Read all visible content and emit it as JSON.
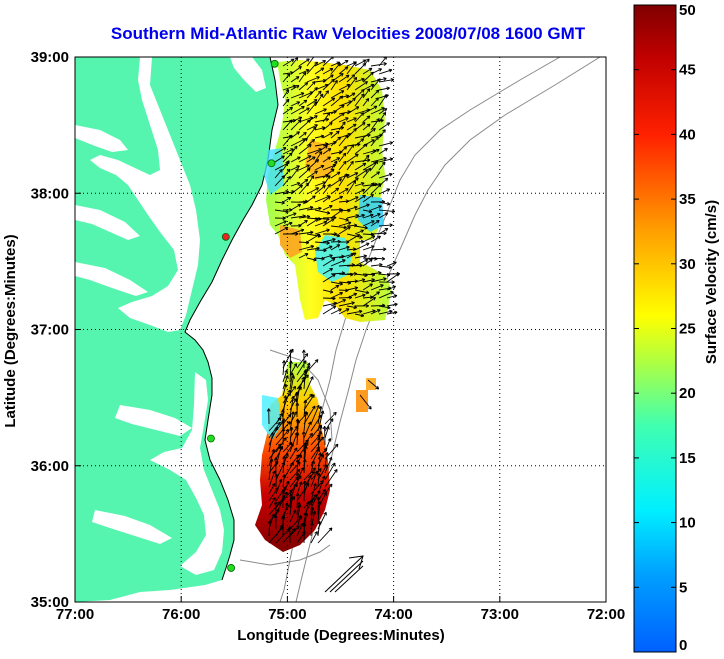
{
  "title": "Southern Mid-Atlantic Raw Velocities 2008/07/08 1600 GMT",
  "x_axis": {
    "label": "Longitude (Degrees:Minutes)",
    "ticks": [
      "77:00",
      "76:00",
      "75:00",
      "74:00",
      "73:00",
      "72:00"
    ]
  },
  "y_axis": {
    "label": "Latitude (Degrees:Minutes)",
    "ticks": [
      "39:00",
      "38:00",
      "37:00",
      "36:00",
      "35:00"
    ]
  },
  "colorbar": {
    "label": "Surface Velocity (cm/s)",
    "min": 0,
    "max": 50,
    "ticks": [
      "0",
      "5",
      "10",
      "15",
      "20",
      "25",
      "30",
      "35",
      "40",
      "45",
      "50"
    ]
  },
  "colors": {
    "land": "#55f5b0",
    "sea": "#ffffff",
    "title": "#0000ee",
    "bathymetry": "#8a8a8a"
  },
  "stations": [
    {
      "lon": -75.12,
      "lat": 38.95,
      "status": "active"
    },
    {
      "lon": -75.15,
      "lat": 38.22,
      "status": "active"
    },
    {
      "lon": -75.58,
      "lat": 37.68,
      "status": "offline"
    },
    {
      "lon": -75.72,
      "lat": 36.2,
      "status": "active"
    },
    {
      "lon": -75.53,
      "lat": 35.25,
      "status": "active"
    }
  ]
}
